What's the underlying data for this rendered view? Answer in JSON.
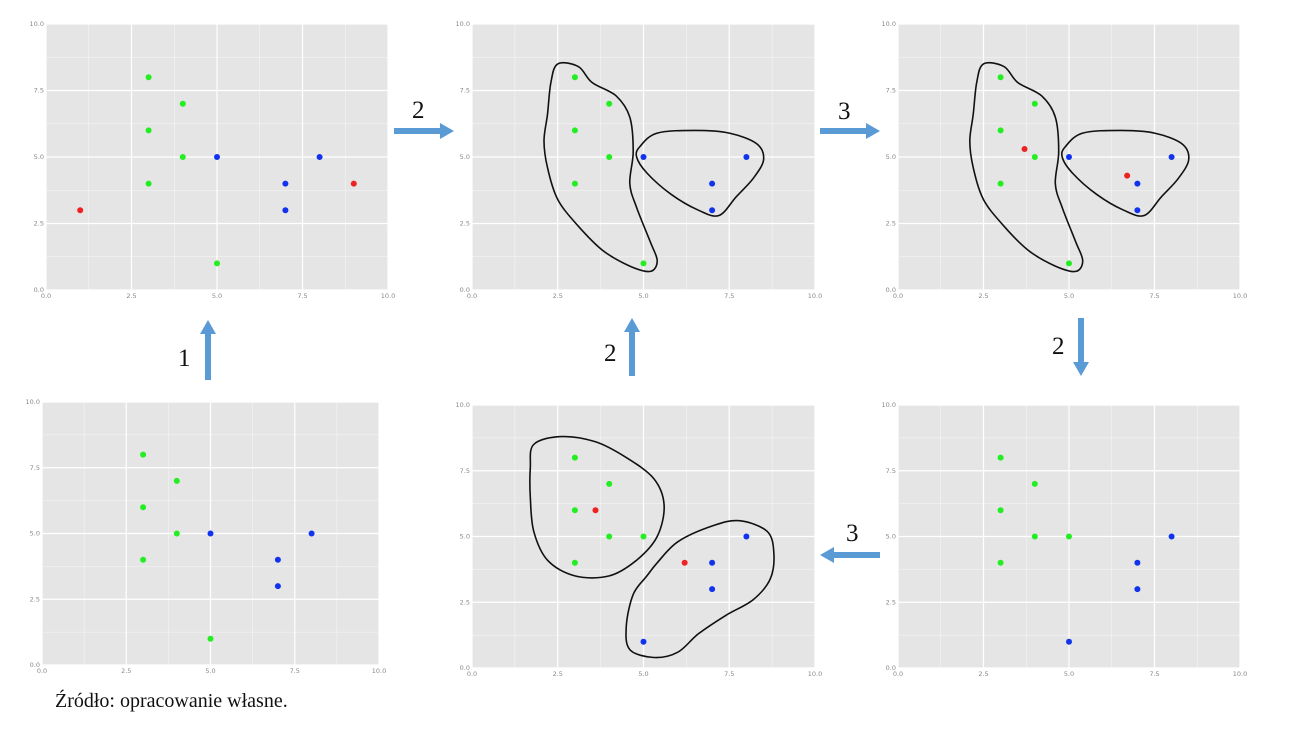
{
  "chart_data": [
    {
      "type": "scatter",
      "xlim": [
        0,
        10
      ],
      "ylim": [
        0,
        10
      ],
      "x_ticks": [
        "0.0",
        "2.5",
        "5.0",
        "7.5",
        "10.0"
      ],
      "y_ticks": [
        "0.0",
        "2.5",
        "5.0",
        "7.5",
        "10.0"
      ],
      "grid": true,
      "series": [
        {
          "color": "#22ee22",
          "points": [
            [
              3,
              8
            ],
            [
              4,
              7
            ],
            [
              3,
              6
            ],
            [
              4,
              5
            ],
            [
              3,
              4
            ],
            [
              5,
              1
            ]
          ]
        },
        {
          "color": "#1133ee",
          "points": [
            [
              5,
              5
            ],
            [
              8,
              5
            ],
            [
              7,
              4
            ],
            [
              7,
              3
            ]
          ]
        },
        {
          "color": "#ee2222",
          "points": [
            [
              1,
              3
            ],
            [
              9,
              4
            ]
          ]
        }
      ]
    },
    {
      "type": "scatter",
      "xlim": [
        0,
        10
      ],
      "ylim": [
        0,
        10
      ],
      "x_ticks": [
        "0.0",
        "2.5",
        "5.0",
        "7.5",
        "10.0"
      ],
      "y_ticks": [
        "0.0",
        "2.5",
        "5.0",
        "7.5",
        "10.0"
      ],
      "grid": true,
      "series": [
        {
          "color": "#22ee22",
          "points": [
            [
              3,
              8
            ],
            [
              4,
              7
            ],
            [
              3,
              6
            ],
            [
              4,
              5
            ],
            [
              3,
              4
            ],
            [
              5,
              1
            ]
          ]
        },
        {
          "color": "#1133ee",
          "points": [
            [
              5,
              5
            ],
            [
              8,
              5
            ],
            [
              7,
              4
            ],
            [
              7,
              3
            ]
          ]
        }
      ],
      "clusters": [
        [
          [
            2.5,
            8.5
          ],
          [
            3.1,
            8.4
          ],
          [
            3.5,
            7.8
          ],
          [
            4.2,
            7.3
          ],
          [
            4.6,
            6.5
          ],
          [
            4.7,
            5.2
          ],
          [
            4.6,
            4.0
          ],
          [
            4.8,
            3.1
          ],
          [
            5.2,
            1.8
          ],
          [
            5.4,
            1.1
          ],
          [
            5.2,
            0.7
          ],
          [
            4.6,
            0.9
          ],
          [
            3.8,
            1.5
          ],
          [
            3.1,
            2.4
          ],
          [
            2.5,
            3.4
          ],
          [
            2.2,
            4.6
          ],
          [
            2.1,
            5.6
          ],
          [
            2.2,
            6.6
          ],
          [
            2.3,
            7.8
          ]
        ],
        [
          [
            4.9,
            5.4
          ],
          [
            5.4,
            5.9
          ],
          [
            6.5,
            6.0
          ],
          [
            7.5,
            5.9
          ],
          [
            8.3,
            5.5
          ],
          [
            8.5,
            4.9
          ],
          [
            8.2,
            4.2
          ],
          [
            7.7,
            3.5
          ],
          [
            7.2,
            2.8
          ],
          [
            6.6,
            3.0
          ],
          [
            5.8,
            3.6
          ],
          [
            5.1,
            4.4
          ],
          [
            4.8,
            5.0
          ]
        ]
      ]
    },
    {
      "type": "scatter",
      "xlim": [
        0,
        10
      ],
      "ylim": [
        0,
        10
      ],
      "x_ticks": [
        "0.0",
        "2.5",
        "5.0",
        "7.5",
        "10.0"
      ],
      "y_ticks": [
        "0.0",
        "2.5",
        "5.0",
        "7.5",
        "10.0"
      ],
      "grid": true,
      "series": [
        {
          "color": "#22ee22",
          "points": [
            [
              3,
              8
            ],
            [
              4,
              7
            ],
            [
              3,
              6
            ],
            [
              4,
              5
            ],
            [
              3,
              4
            ],
            [
              5,
              1
            ]
          ]
        },
        {
          "color": "#1133ee",
          "points": [
            [
              5,
              5
            ],
            [
              8,
              5
            ],
            [
              7,
              4
            ],
            [
              7,
              3
            ]
          ]
        },
        {
          "color": "#ee2222",
          "points": [
            [
              3.7,
              5.3
            ],
            [
              6.7,
              4.3
            ]
          ]
        }
      ],
      "clusters": [
        [
          [
            2.5,
            8.5
          ],
          [
            3.1,
            8.4
          ],
          [
            3.5,
            7.8
          ],
          [
            4.2,
            7.3
          ],
          [
            4.6,
            6.5
          ],
          [
            4.7,
            5.2
          ],
          [
            4.6,
            4.0
          ],
          [
            4.8,
            3.1
          ],
          [
            5.2,
            1.8
          ],
          [
            5.4,
            1.1
          ],
          [
            5.2,
            0.7
          ],
          [
            4.6,
            0.9
          ],
          [
            3.8,
            1.5
          ],
          [
            3.1,
            2.4
          ],
          [
            2.5,
            3.4
          ],
          [
            2.2,
            4.6
          ],
          [
            2.1,
            5.6
          ],
          [
            2.2,
            6.6
          ],
          [
            2.3,
            7.8
          ]
        ],
        [
          [
            4.9,
            5.4
          ],
          [
            5.4,
            5.9
          ],
          [
            6.5,
            6.0
          ],
          [
            7.5,
            5.9
          ],
          [
            8.3,
            5.5
          ],
          [
            8.5,
            4.9
          ],
          [
            8.2,
            4.2
          ],
          [
            7.7,
            3.5
          ],
          [
            7.2,
            2.8
          ],
          [
            6.6,
            3.0
          ],
          [
            5.8,
            3.6
          ],
          [
            5.1,
            4.4
          ],
          [
            4.8,
            5.0
          ]
        ]
      ]
    },
    {
      "type": "scatter",
      "xlim": [
        0,
        10
      ],
      "ylim": [
        0,
        10
      ],
      "x_ticks": [
        "0.0",
        "2.5",
        "5.0",
        "7.5",
        "10.0"
      ],
      "y_ticks": [
        "0.0",
        "2.5",
        "5.0",
        "7.5",
        "10.0"
      ],
      "grid": true,
      "series": [
        {
          "color": "#22ee22",
          "points": [
            [
              3,
              8
            ],
            [
              4,
              7
            ],
            [
              3,
              6
            ],
            [
              4,
              5
            ],
            [
              3,
              4
            ],
            [
              5,
              1
            ]
          ]
        },
        {
          "color": "#1133ee",
          "points": [
            [
              5,
              5
            ],
            [
              8,
              5
            ],
            [
              7,
              4
            ],
            [
              7,
              3
            ]
          ]
        }
      ]
    },
    {
      "type": "scatter",
      "xlim": [
        0,
        10
      ],
      "ylim": [
        0,
        10
      ],
      "x_ticks": [
        "0.0",
        "2.5",
        "5.0",
        "7.5",
        "10.0"
      ],
      "y_ticks": [
        "0.0",
        "2.5",
        "5.0",
        "7.5",
        "10.0"
      ],
      "grid": true,
      "series": [
        {
          "color": "#22ee22",
          "points": [
            [
              3,
              8
            ],
            [
              4,
              7
            ],
            [
              3,
              6
            ],
            [
              4,
              5
            ],
            [
              3,
              4
            ],
            [
              5,
              5
            ]
          ]
        },
        {
          "color": "#1133ee",
          "points": [
            [
              8,
              5
            ],
            [
              7,
              4
            ],
            [
              7,
              3
            ],
            [
              5,
              1
            ]
          ]
        },
        {
          "color": "#ee2222",
          "points": [
            [
              3.6,
              6
            ],
            [
              6.2,
              4
            ]
          ]
        }
      ],
      "clusters": [
        [
          [
            1.8,
            8.5
          ],
          [
            2.6,
            8.8
          ],
          [
            3.6,
            8.6
          ],
          [
            4.5,
            8.0
          ],
          [
            5.3,
            7.2
          ],
          [
            5.6,
            6.2
          ],
          [
            5.4,
            5.0
          ],
          [
            4.8,
            4.1
          ],
          [
            4.0,
            3.5
          ],
          [
            3.0,
            3.5
          ],
          [
            2.2,
            4.1
          ],
          [
            1.8,
            5.2
          ],
          [
            1.7,
            6.5
          ],
          [
            1.7,
            7.6
          ]
        ],
        [
          [
            5.4,
            4.0
          ],
          [
            6.0,
            4.8
          ],
          [
            7.0,
            5.4
          ],
          [
            7.8,
            5.6
          ],
          [
            8.6,
            5.2
          ],
          [
            8.8,
            4.4
          ],
          [
            8.7,
            3.4
          ],
          [
            8.2,
            2.6
          ],
          [
            7.4,
            2.0
          ],
          [
            6.6,
            1.3
          ],
          [
            6.0,
            0.6
          ],
          [
            5.3,
            0.4
          ],
          [
            4.6,
            0.7
          ],
          [
            4.5,
            1.6
          ],
          [
            4.7,
            2.8
          ],
          [
            5.1,
            3.5
          ]
        ]
      ]
    },
    {
      "type": "scatter",
      "xlim": [
        0,
        10
      ],
      "ylim": [
        0,
        10
      ],
      "x_ticks": [
        "0.0",
        "2.5",
        "5.0",
        "7.5",
        "10.0"
      ],
      "y_ticks": [
        "0.0",
        "2.5",
        "5.0",
        "7.5",
        "10.0"
      ],
      "grid": true,
      "series": [
        {
          "color": "#22ee22",
          "points": [
            [
              3,
              8
            ],
            [
              4,
              7
            ],
            [
              3,
              6
            ],
            [
              4,
              5
            ],
            [
              3,
              4
            ],
            [
              5,
              5
            ]
          ]
        },
        {
          "color": "#1133ee",
          "points": [
            [
              8,
              5
            ],
            [
              7,
              4
            ],
            [
              7,
              3
            ],
            [
              5,
              1
            ]
          ]
        }
      ]
    }
  ],
  "steps": {
    "s1": "1",
    "s2_top": "2",
    "s3_top": "3",
    "s2_mid_center": "2",
    "s2_mid_right": "2",
    "s3_bottom": "3"
  },
  "arrow_color": "#5b9bd5",
  "caption": "Źródło: opracowanie własne."
}
